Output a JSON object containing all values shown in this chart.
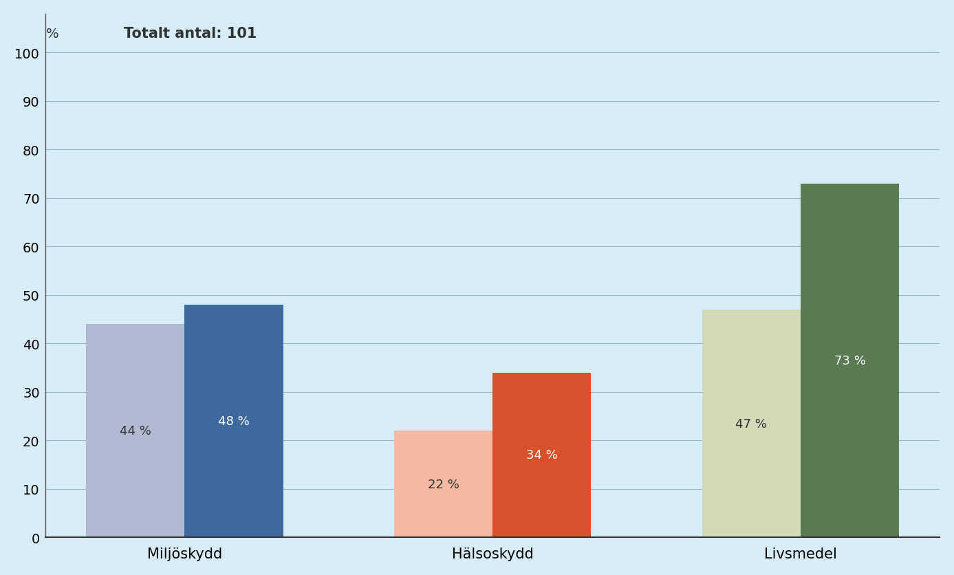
{
  "categories": [
    "Miljöskydd",
    "Hälsoskydd",
    "Livsmedel"
  ],
  "bar1_values": [
    44,
    22,
    47
  ],
  "bar2_values": [
    48,
    34,
    73
  ],
  "bar1_colors": [
    "#b3b8d4",
    "#f5b8a0",
    "#d4d9b8"
  ],
  "bar2_colors": [
    "#3d6a9e",
    "#d9502b",
    "#5a7a52"
  ],
  "bar1_labels": [
    "44 %",
    "22 %",
    "47 %"
  ],
  "bar2_labels": [
    "48 %",
    "34 %",
    "73 %"
  ],
  "bar1_label_color": "#333333",
  "bar2_label_color": "#ffffff",
  "ylim": [
    0,
    108
  ],
  "yticks": [
    0,
    10,
    20,
    30,
    40,
    50,
    60,
    70,
    80,
    90,
    100
  ],
  "annotation": "Totalt antal: 101",
  "ylabel_text": "%",
  "background_color": "#d6edf7",
  "grid_color": "#9ab8c5",
  "bar_width": 0.32,
  "annotation_fontsize": 15,
  "tick_fontsize": 14,
  "label_fontsize": 13,
  "cat_fontsize": 15
}
